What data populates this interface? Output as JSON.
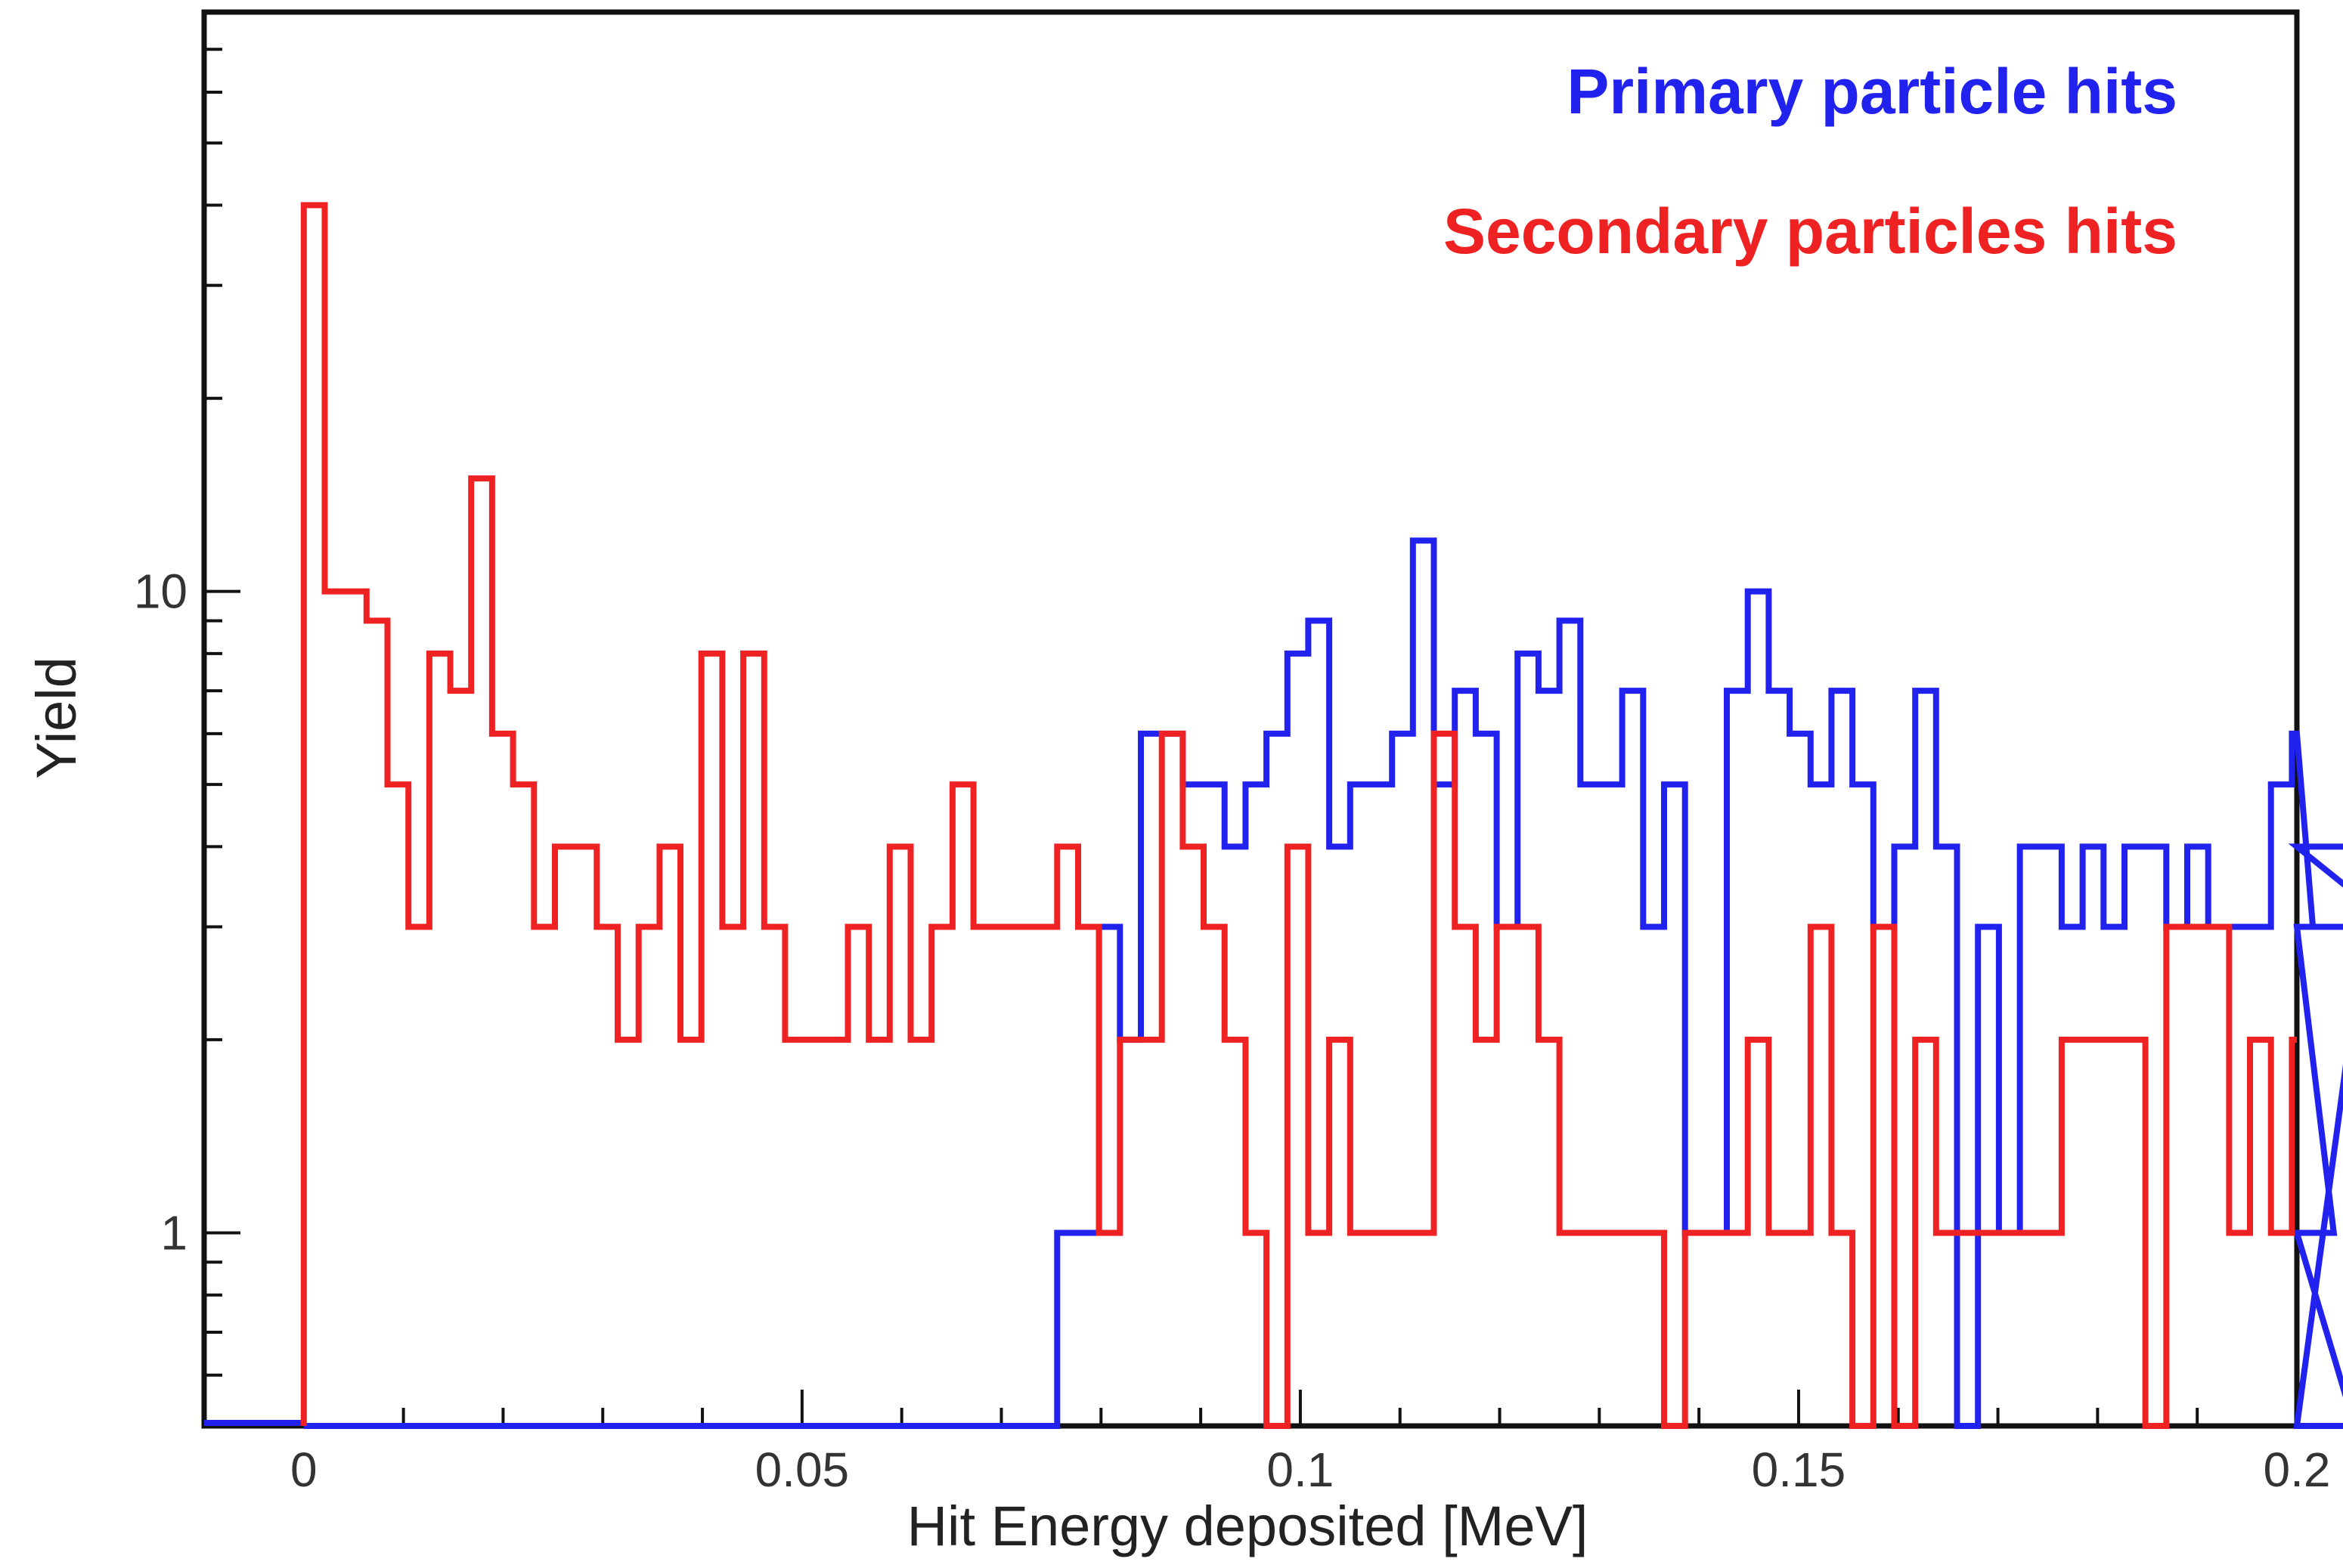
{
  "chart_data": {
    "type": "line",
    "title": "",
    "xlabel": "Hit Energy deposited [MeV]",
    "ylabel": "Yield",
    "xlim": [
      -0.01,
      0.2
    ],
    "ylim": [
      0.5,
      80
    ],
    "y_scale": "log",
    "grid": false,
    "legend_position": "top-right",
    "x_ticks": [
      0,
      0.05,
      0.1,
      0.15,
      0.2
    ],
    "x_tick_labels": [
      "0",
      "0.05",
      "0.1",
      "0.15",
      "0.2"
    ],
    "y_ticks": [
      1,
      10
    ],
    "y_tick_labels": [
      "1",
      "10"
    ],
    "bin_width": 0.0021,
    "bin_start": 0,
    "series": [
      {
        "name": "Primary particle hits",
        "color": "#2222ee",
        "values": [
          0,
          0,
          0,
          0,
          0,
          0,
          0,
          0,
          0,
          0,
          0,
          0,
          0,
          0,
          0,
          0,
          0,
          0,
          0,
          0,
          0,
          0,
          0,
          0,
          0,
          0,
          0,
          0,
          0,
          0,
          0,
          0,
          0,
          0,
          0,
          0,
          1,
          1,
          3,
          2,
          6,
          6,
          5,
          5,
          4,
          5,
          6,
          8,
          9,
          4,
          5,
          5,
          6,
          12,
          5,
          7,
          6,
          3,
          8,
          7,
          9,
          5,
          5,
          7,
          3,
          5,
          1,
          1,
          7,
          10,
          7,
          6,
          5,
          7,
          5,
          3,
          4,
          7,
          4,
          0,
          3,
          1,
          4,
          4,
          3,
          4,
          3,
          4,
          4,
          3,
          4,
          3,
          3,
          3,
          5,
          6,
          3,
          1,
          0,
          4,
          3
        ]
      },
      {
        "name": "Secondary particles hits",
        "color": "#ee2222",
        "values": [
          40,
          10,
          10,
          9,
          5,
          3,
          8,
          7,
          15,
          6,
          5,
          3,
          4,
          4,
          3,
          2,
          3,
          4,
          2,
          8,
          3,
          8,
          3,
          2,
          2,
          2,
          3,
          2,
          4,
          2,
          3,
          5,
          3,
          3,
          3,
          3,
          4,
          3,
          1,
          2,
          2,
          6,
          4,
          3,
          2,
          1,
          0,
          4,
          1,
          2,
          1,
          1,
          1,
          1,
          6,
          3,
          2,
          3,
          3,
          2,
          1,
          1,
          1,
          1,
          1,
          0,
          1,
          1,
          1,
          2,
          1,
          1,
          3,
          1,
          0,
          3,
          0,
          2,
          1,
          1,
          1,
          1,
          1,
          1,
          2,
          2,
          2,
          2,
          0,
          3,
          3,
          3,
          1,
          2,
          1,
          2
        ]
      }
    ]
  }
}
